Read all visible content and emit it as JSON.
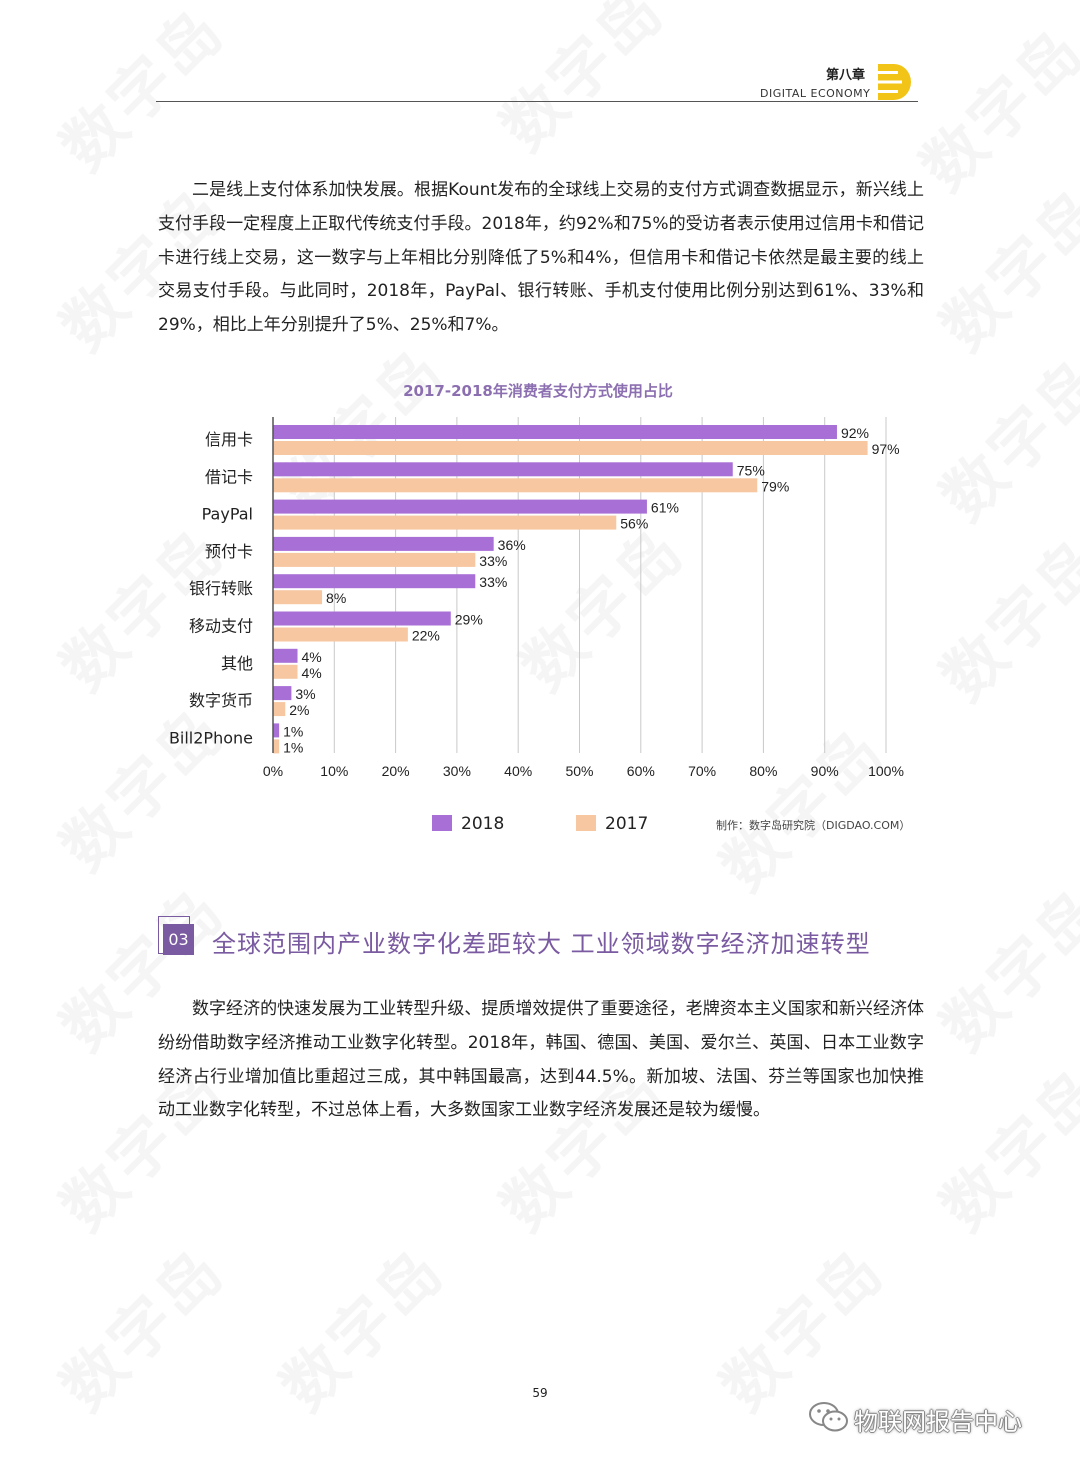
{
  "header": {
    "chapter": "第八章",
    "subtitle": "DIGITAL  ECONOMY"
  },
  "watermark": "数字岛",
  "paragraph1": "二是线上支付体系加快发展。根据Kount发布的全球线上交易的支付方式调查数据显示，新兴线上支付手段一定程度上正取代传统支付手段。2018年，约92%和75%的受访者表示使用过信用卡和借记卡进行线上交易，这一数字与上年相比分别降低了5%和4%，但信用卡和借记卡依然是最主要的线上交易支付手段。与此同时，2018年，PayPal、银行转账、手机支付使用比例分别达到61%、33%和29%，相比上年分别提升了5%、25%和7%。",
  "chart_data": {
    "type": "bar",
    "orientation": "horizontal",
    "title": "2017-2018年消费者支付方式使用占比",
    "categories": [
      "信用卡",
      "借记卡",
      "PayPal",
      "预付卡",
      "银行转账",
      "移动支付",
      "其他",
      "数字货币",
      "Bill2Phone"
    ],
    "series": [
      {
        "name": "2018",
        "color": "#a86fd6",
        "values": [
          92,
          75,
          61,
          36,
          33,
          29,
          4,
          3,
          1
        ]
      },
      {
        "name": "2017",
        "color": "#f7c7a1",
        "values": [
          97,
          79,
          56,
          33,
          8,
          22,
          4,
          2,
          1
        ]
      }
    ],
    "xlim": [
      0,
      100
    ],
    "xticks": [
      "0%",
      "10%",
      "20%",
      "30%",
      "40%",
      "50%",
      "60%",
      "70%",
      "80%",
      "90%",
      "100%"
    ],
    "grid": "vertical",
    "legend": "bottom",
    "credit": "制作：数字岛研究院（DIGDAO.COM）"
  },
  "section": {
    "number": "03",
    "title": "全球范围内产业数字化差距较大  工业领域数字经济加速转型"
  },
  "paragraph2": "数字经济的快速发展为工业转型升级、提质增效提供了重要途径，老牌资本主义国家和新兴经济体纷纷借助数字经济推动工业数字化转型。2018年，韩国、德国、美国、爱尔兰、英国、日本工业数字经济占行业增加值比重超过三成，其中韩国最高，达到44.5%。新加坡、法国、芬兰等国家也加快推动工业数字化转型，不过总体上看，大多数国家工业数字经济发展还是较为缓慢。",
  "page_number": "59",
  "footer_account": "物联网报告中心"
}
